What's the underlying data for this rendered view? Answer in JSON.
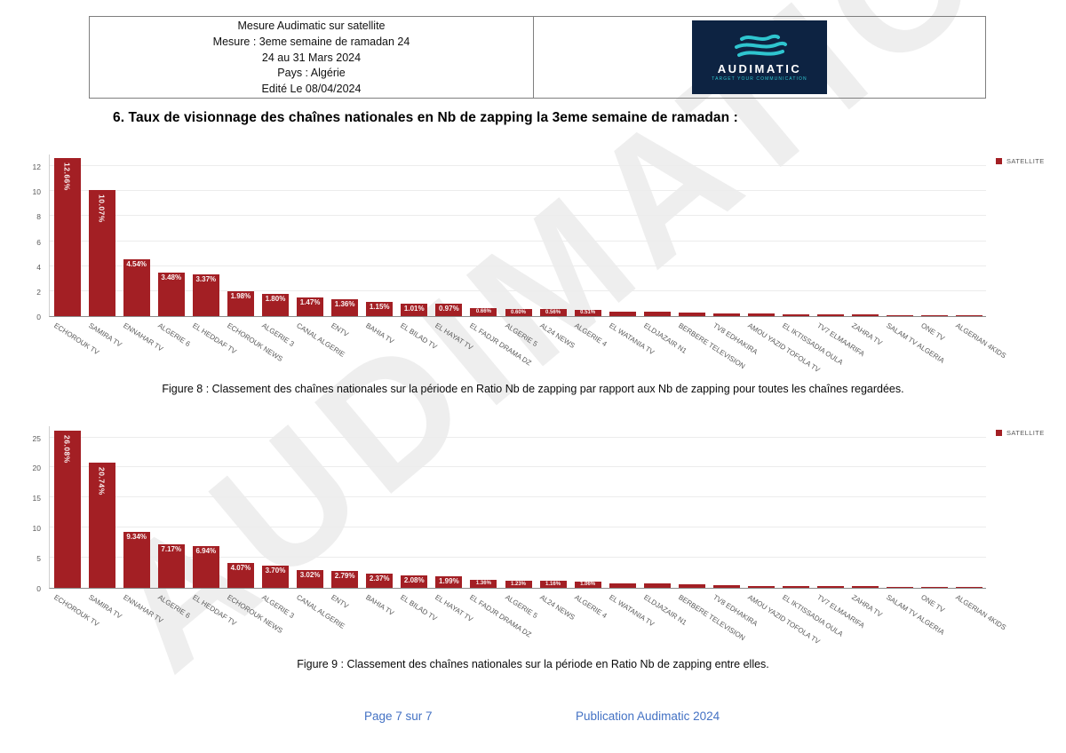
{
  "watermark": "AUDIMATIC",
  "header": {
    "info_lines": [
      "Mesure Audimatic sur satellite",
      "Mesure :  3eme semaine de ramadan 24",
      "24 au 31 Mars 2024",
      "Pays : Algérie",
      "Edité Le 08/04/2024"
    ],
    "logo": {
      "brand": "AUDIMATIC",
      "tagline": "TARGET YOUR COMMUNICATION",
      "bg_color": "#0d2342",
      "wave_color": "#2fc5cf"
    }
  },
  "section_title": "6.  Taux de visionnage des chaînes nationales en Nb de zapping la 3eme semaine de ramadan :",
  "chart_data": [
    {
      "type": "bar",
      "legend_label": "SATELLITE",
      "legend_position": "top-right",
      "bar_color": "#a31f24",
      "grid": true,
      "ylim": [
        0,
        13
      ],
      "yticks": [
        0,
        2,
        4,
        6,
        8,
        10,
        12
      ],
      "categories": [
        "ECHOROUK TV",
        "SAMIRA TV",
        "ENNAHAR TV",
        "ALGERIE 6",
        "EL HEDDAF TV",
        "ECHOROUK NEWS",
        "ALGERIE 3",
        "CANAL ALGERIE",
        "ENTV",
        "BAHIA TV",
        "EL BILAD TV",
        "EL HAYAT TV",
        "EL FADJR DRAMA DZ",
        "ALGERIE 5",
        "AL24 NEWS",
        "ALGERIE 4",
        "EL WATANIA TV",
        "ELDJAZAIR N1",
        "BERBERE TELEVISION",
        "TV8 EDHAKIRA",
        "AMOU YAZID TOFOLA TV",
        "EL IKTISSADIA OULA",
        "TV7 ELMAARIFA",
        "ZAHRA TV",
        "SALAM TV ALGERIA",
        "ONE TV",
        "ALGERIAN 4KIDS"
      ],
      "values": [
        12.66,
        10.07,
        4.54,
        3.48,
        3.37,
        1.98,
        1.8,
        1.47,
        1.36,
        1.15,
        1.01,
        0.97,
        0.66,
        0.6,
        0.56,
        0.51,
        0.38,
        0.33,
        0.26,
        0.21,
        0.18,
        0.15,
        0.13,
        0.11,
        0.09,
        0.07,
        0.06
      ],
      "labels": [
        "12.66%",
        "10.07%",
        "4.54%",
        "3.48%",
        "3.37%",
        "1.98%",
        "1.80%",
        "1.47%",
        "1.36%",
        "1.15%",
        "1.01%",
        "0.97%",
        "0.66%",
        "0.60%",
        "0.56%",
        "0.51%",
        "",
        "",
        "",
        "",
        "",
        "",
        "",
        "",
        "",
        "",
        ""
      ],
      "caption": "Figure 8 : Classement des chaînes nationales sur la période en Ratio Nb de zapping par rapport aux Nb de zapping pour toutes les chaînes regardées."
    },
    {
      "type": "bar",
      "legend_label": "SATELLITE",
      "legend_position": "top-right",
      "bar_color": "#a31f24",
      "grid": true,
      "ylim": [
        0,
        27
      ],
      "yticks": [
        0,
        5,
        10,
        15,
        20,
        25
      ],
      "categories": [
        "ECHOROUK TV",
        "SAMIRA TV",
        "ENNAHAR TV",
        "ALGERIE 6",
        "EL HEDDAF TV",
        "ECHOROUK NEWS",
        "ALGERIE 3",
        "CANAL ALGERIE",
        "ENTV",
        "BAHIA TV",
        "EL BILAD TV",
        "EL HAYAT TV",
        "EL FADJR DRAMA DZ",
        "ALGERIE 5",
        "AL24 NEWS",
        "ALGERIE 4",
        "EL WATANIA TV",
        "ELDJAZAIR N1",
        "BERBERE TELEVISION",
        "TV8 EDHAKIRA",
        "AMOU YAZID TOFOLA TV",
        "EL IKTISSADIA OULA",
        "TV7 ELMAARIFA",
        "ZAHRA TV",
        "SALAM TV ALGERIA",
        "ONE TV",
        "ALGERIAN 4KIDS"
      ],
      "values": [
        26.08,
        20.74,
        9.34,
        7.17,
        6.94,
        4.07,
        3.7,
        3.02,
        2.79,
        2.37,
        2.08,
        1.99,
        1.36,
        1.23,
        1.16,
        1.06,
        0.78,
        0.68,
        0.54,
        0.43,
        0.37,
        0.31,
        0.27,
        0.23,
        0.19,
        0.14,
        0.12
      ],
      "labels": [
        "26.08%",
        "20.74%",
        "9.34%",
        "7.17%",
        "6.94%",
        "4.07%",
        "3.70%",
        "3.02%",
        "2.79%",
        "2.37%",
        "2.08%",
        "1.99%",
        "1.36%",
        "1.23%",
        "1.16%",
        "1.06%",
        "",
        "",
        "",
        "",
        "",
        "",
        "",
        "",
        "",
        "",
        ""
      ],
      "caption": "Figure 9 : Classement des chaînes nationales sur la période en Ratio Nb de zapping entre elles."
    }
  ],
  "footer": {
    "page_label": "Page 7 sur 7",
    "publication": "Publication Audimatic 2024"
  }
}
